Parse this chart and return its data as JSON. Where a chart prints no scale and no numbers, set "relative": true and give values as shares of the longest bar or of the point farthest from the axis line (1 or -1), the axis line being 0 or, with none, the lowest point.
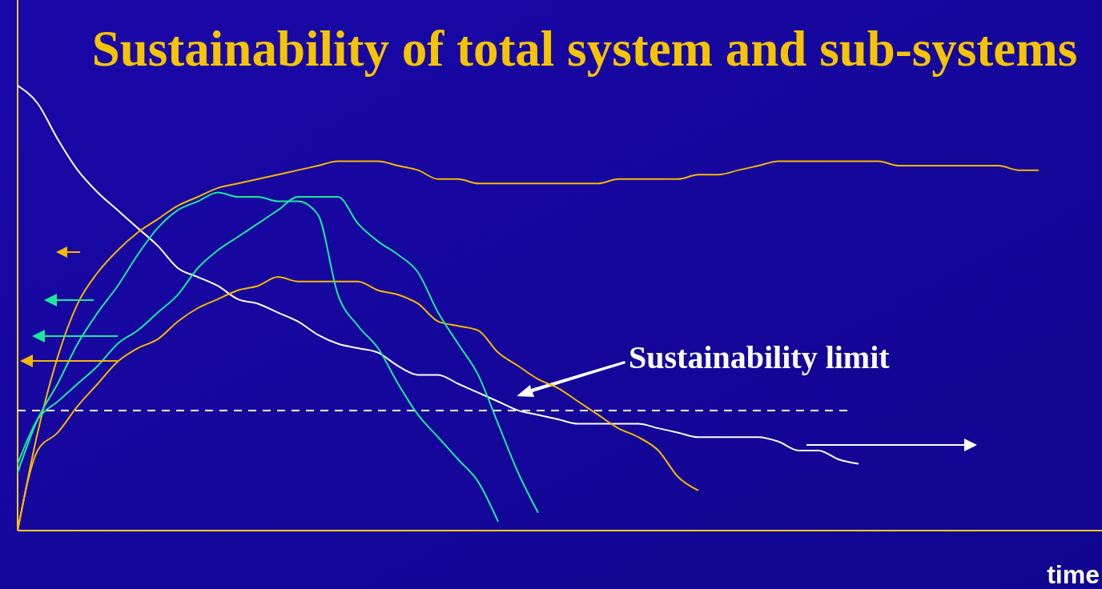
{
  "chart_data": {
    "type": "line",
    "title": "Sustainability of total system and sub-systems",
    "xlabel": "time",
    "relative": true,
    "categories": [
      null,
      null,
      null,
      null,
      null,
      null,
      null,
      null,
      null,
      null,
      null,
      null,
      null,
      null,
      null,
      null,
      null,
      null,
      null,
      null,
      null,
      null,
      null,
      null,
      null,
      null,
      null,
      null,
      null,
      null,
      null,
      null,
      null,
      null,
      null,
      null,
      null,
      null,
      null,
      null,
      null,
      null,
      null,
      null,
      null,
      null,
      null,
      null,
      null,
      null,
      null,
      null
    ],
    "series": [
      {
        "color": "#ffffff",
        "values": [
          1,
          0.96,
          0.88,
          0.81,
          0.76,
          0.72,
          0.68,
          0.64,
          0.59,
          0.57,
          0.55,
          0.52,
          0.51,
          0.49,
          0.47,
          0.44,
          0.42,
          0.41,
          0.4,
          0.37,
          0.35,
          0.35,
          0.33,
          0.31,
          0.29,
          0.27,
          0.26,
          0.25,
          0.24,
          0.24,
          0.24,
          0.24,
          0.23,
          0.22,
          0.21,
          0.21,
          0.21,
          0.21,
          0.2,
          0.18,
          0.18,
          0.16,
          0.15,
          null,
          null,
          null,
          null,
          null,
          null,
          null,
          null,
          null
        ]
      },
      {
        "color": "#f5b800",
        "values": [
          0.0,
          0.22,
          0.39,
          0.51,
          0.58,
          0.63,
          0.67,
          0.7,
          0.73,
          0.75,
          0.77,
          0.78,
          0.79,
          0.8,
          0.81,
          0.82,
          0.83,
          0.83,
          0.83,
          0.82,
          0.81,
          0.79,
          0.79,
          0.78,
          0.78,
          0.78,
          0.78,
          0.78,
          0.78,
          0.78,
          0.79,
          0.79,
          0.79,
          0.79,
          0.8,
          0.8,
          0.81,
          0.82,
          0.83,
          0.83,
          0.83,
          0.83,
          0.83,
          0.83,
          0.82,
          0.82,
          0.82,
          0.82,
          0.82,
          0.82,
          0.81,
          0.81
        ]
      },
      {
        "color": "#f5b800",
        "values": [
          0.0,
          0.18,
          0.22,
          0.28,
          0.33,
          0.38,
          0.41,
          0.43,
          0.47,
          0.5,
          0.52,
          0.54,
          0.55,
          0.57,
          0.56,
          0.56,
          0.56,
          0.56,
          0.54,
          0.53,
          0.51,
          0.47,
          0.46,
          0.45,
          0.4,
          0.37,
          0.34,
          0.32,
          0.29,
          0.26,
          0.23,
          0.21,
          0.18,
          0.12,
          0.09,
          null,
          null,
          null,
          null,
          null,
          null,
          null,
          null,
          null,
          null,
          null,
          null,
          null,
          null,
          null,
          null,
          null
        ]
      },
      {
        "color": "#1de89a",
        "values": [
          0.13,
          0.25,
          0.33,
          0.42,
          0.49,
          0.55,
          0.62,
          0.68,
          0.72,
          0.74,
          0.76,
          0.75,
          0.75,
          0.74,
          0.74,
          0.71,
          0.53,
          0.46,
          0.41,
          0.33,
          0.26,
          0.21,
          0.16,
          0.11,
          0.02,
          null,
          null,
          null,
          null,
          null,
          null,
          null,
          null,
          null,
          null,
          null,
          null,
          null,
          null,
          null,
          null,
          null,
          null,
          null,
          null,
          null,
          null,
          null,
          null,
          null,
          null,
          null
        ]
      },
      {
        "color": "#1de89a",
        "values": [
          0.15,
          0.25,
          0.29,
          0.33,
          0.37,
          0.42,
          0.45,
          0.49,
          0.53,
          0.59,
          0.63,
          0.66,
          0.69,
          0.72,
          0.75,
          0.75,
          0.75,
          0.69,
          0.65,
          0.62,
          0.58,
          0.49,
          0.42,
          0.35,
          0.24,
          0.13,
          0.04,
          null,
          null,
          null,
          null,
          null,
          null,
          null,
          null,
          null,
          null,
          null,
          null,
          null,
          null,
          null,
          null,
          null,
          null,
          null,
          null,
          null,
          null,
          null,
          null,
          null
        ]
      }
    ],
    "ref_lines": [
      {
        "axis": "y",
        "value": 0.27,
        "label": "Sustainability limit",
        "color": "#ffffff",
        "line_style": "dashed"
      }
    ]
  }
}
